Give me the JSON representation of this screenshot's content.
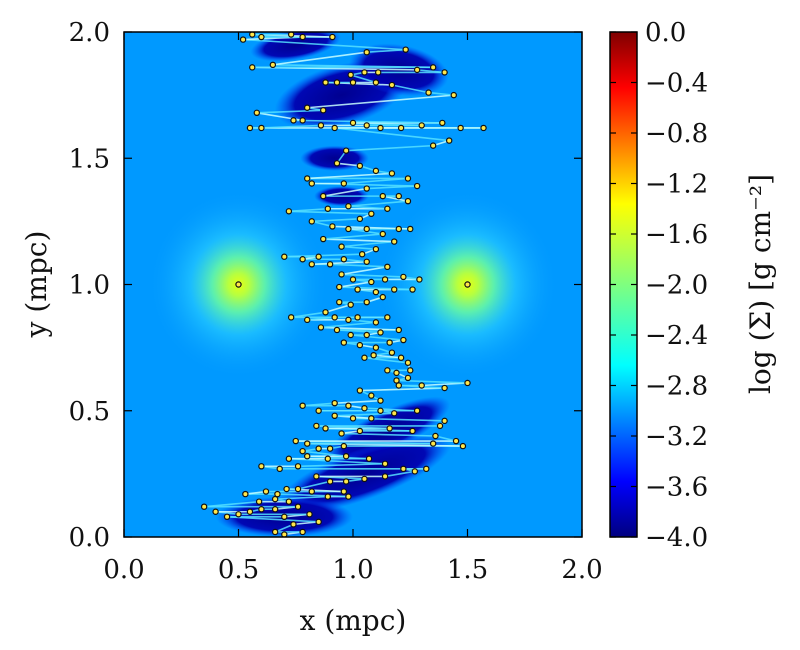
{
  "chart_data": {
    "type": "heatmap",
    "title": "",
    "xlabel": "x (mpc)",
    "ylabel": "y (mpc)",
    "xlim": [
      0.0,
      2.0
    ],
    "ylim": [
      0.0,
      2.0
    ],
    "x_ticks": [
      "0.0",
      "0.5",
      "1.0",
      "1.5",
      "2.0"
    ],
    "y_ticks": [
      "0.0",
      "0.5",
      "1.0",
      "1.5",
      "2.0"
    ],
    "colorbar": {
      "label": "log (Σ)  [g cm⁻²]",
      "range": [
        -4.0,
        0.0
      ],
      "colormap": "jet",
      "ticks": [
        "0.0",
        "−0.4",
        "−0.8",
        "−1.2",
        "−1.6",
        "−2.0",
        "−2.4",
        "−2.8",
        "−3.2",
        "−3.6",
        "−4.0"
      ]
    },
    "background_level": -2.9,
    "grid": false,
    "sources": [
      {
        "x": 0.5,
        "y": 1.0,
        "peak_log_sigma": -2.0
      },
      {
        "x": 1.5,
        "y": 1.0,
        "peak_log_sigma": -2.0
      }
    ],
    "low_density_regions": [
      {
        "x": 0.95,
        "y": 1.75,
        "rx": 0.3,
        "ry": 0.12,
        "rotation": -15
      },
      {
        "x": 1.2,
        "y": 1.85,
        "rx": 0.22,
        "ry": 0.1,
        "rotation": 10
      },
      {
        "x": 0.75,
        "y": 1.95,
        "rx": 0.2,
        "ry": 0.06,
        "rotation": -10
      },
      {
        "x": 1.15,
        "y": 0.42,
        "rx": 0.3,
        "ry": 0.08,
        "rotation": -25
      },
      {
        "x": 1.05,
        "y": 0.25,
        "rx": 0.4,
        "ry": 0.1,
        "rotation": -20
      },
      {
        "x": 0.7,
        "y": 0.08,
        "rx": 0.3,
        "ry": 0.08,
        "rotation": 0
      },
      {
        "x": 0.92,
        "y": 1.5,
        "rx": 0.15,
        "ry": 0.05,
        "rotation": 0
      },
      {
        "x": 0.95,
        "y": 1.35,
        "rx": 0.12,
        "ry": 0.04,
        "rotation": 0
      }
    ],
    "particles": [
      [
        0.5,
        1.0
      ],
      [
        1.5,
        1.0
      ],
      [
        0.56,
        1.99
      ],
      [
        0.73,
        1.99
      ],
      [
        0.78,
        1.98
      ],
      [
        0.52,
        1.97
      ],
      [
        0.6,
        1.98
      ],
      [
        0.91,
        1.98
      ],
      [
        1.06,
        1.92
      ],
      [
        1.23,
        1.93
      ],
      [
        0.65,
        1.87
      ],
      [
        0.56,
        1.86
      ],
      [
        0.99,
        1.83
      ],
      [
        1.05,
        1.84
      ],
      [
        1.11,
        1.84
      ],
      [
        1.28,
        1.85
      ],
      [
        1.35,
        1.86
      ],
      [
        1.4,
        1.84
      ],
      [
        0.88,
        1.8
      ],
      [
        0.93,
        1.8
      ],
      [
        1.0,
        1.8
      ],
      [
        1.1,
        1.8
      ],
      [
        1.17,
        1.79
      ],
      [
        1.33,
        1.76
      ],
      [
        1.44,
        1.75
      ],
      [
        0.8,
        1.7
      ],
      [
        0.87,
        1.69
      ],
      [
        0.58,
        1.68
      ],
      [
        0.74,
        1.65
      ],
      [
        0.78,
        1.65
      ],
      [
        0.86,
        1.63
      ],
      [
        0.92,
        1.62
      ],
      [
        1.0,
        1.64
      ],
      [
        1.06,
        1.63
      ],
      [
        1.12,
        1.62
      ],
      [
        1.21,
        1.62
      ],
      [
        1.3,
        1.63
      ],
      [
        1.39,
        1.64
      ],
      [
        1.47,
        1.62
      ],
      [
        1.57,
        1.62
      ],
      [
        0.55,
        1.62
      ],
      [
        0.6,
        1.62
      ],
      [
        1.35,
        1.55
      ],
      [
        1.42,
        1.57
      ],
      [
        0.97,
        1.53
      ],
      [
        0.93,
        1.48
      ],
      [
        1.03,
        1.47
      ],
      [
        1.1,
        1.45
      ],
      [
        1.17,
        1.44
      ],
      [
        1.24,
        1.42
      ],
      [
        1.28,
        1.39
      ],
      [
        0.8,
        1.42
      ],
      [
        0.82,
        1.4
      ],
      [
        0.96,
        1.4
      ],
      [
        1.06,
        1.38
      ],
      [
        1.13,
        1.35
      ],
      [
        1.2,
        1.35
      ],
      [
        1.24,
        1.33
      ],
      [
        0.87,
        1.35
      ],
      [
        0.89,
        1.3
      ],
      [
        0.98,
        1.31
      ],
      [
        1.03,
        1.26
      ],
      [
        1.08,
        1.28
      ],
      [
        1.15,
        1.3
      ],
      [
        0.72,
        1.29
      ],
      [
        0.82,
        1.25
      ],
      [
        0.91,
        1.23
      ],
      [
        0.98,
        1.22
      ],
      [
        1.06,
        1.22
      ],
      [
        1.13,
        1.2
      ],
      [
        1.2,
        1.22
      ],
      [
        1.25,
        1.22
      ],
      [
        0.87,
        1.18
      ],
      [
        0.95,
        1.15
      ],
      [
        1.04,
        1.12
      ],
      [
        1.1,
        1.14
      ],
      [
        1.18,
        1.17
      ],
      [
        0.85,
        1.11
      ],
      [
        0.9,
        1.08
      ],
      [
        0.96,
        1.1
      ],
      [
        1.06,
        1.09
      ],
      [
        1.15,
        1.07
      ],
      [
        0.7,
        1.11
      ],
      [
        0.78,
        1.1
      ],
      [
        0.82,
        1.08
      ],
      [
        0.95,
        1.04
      ],
      [
        1.0,
        1.02
      ],
      [
        1.08,
        1.01
      ],
      [
        1.14,
        1.02
      ],
      [
        1.22,
        1.03
      ],
      [
        1.29,
        1.02
      ],
      [
        0.94,
        0.99
      ],
      [
        1.02,
        0.98
      ],
      [
        1.1,
        0.97
      ],
      [
        1.18,
        0.98
      ],
      [
        1.26,
        0.98
      ],
      [
        0.94,
        0.93
      ],
      [
        0.99,
        0.92
      ],
      [
        1.06,
        0.93
      ],
      [
        1.13,
        0.95
      ],
      [
        0.88,
        0.89
      ],
      [
        0.92,
        0.87
      ],
      [
        0.98,
        0.86
      ],
      [
        1.02,
        0.87
      ],
      [
        1.1,
        0.85
      ],
      [
        1.15,
        0.87
      ],
      [
        0.73,
        0.87
      ],
      [
        0.8,
        0.86
      ],
      [
        0.86,
        0.83
      ],
      [
        0.93,
        0.82
      ],
      [
        0.99,
        0.8
      ],
      [
        1.06,
        0.8
      ],
      [
        1.12,
        0.81
      ],
      [
        1.2,
        0.82
      ],
      [
        0.96,
        0.77
      ],
      [
        1.03,
        0.76
      ],
      [
        1.1,
        0.75
      ],
      [
        1.16,
        0.77
      ],
      [
        1.22,
        0.78
      ],
      [
        1.05,
        0.71
      ],
      [
        1.09,
        0.72
      ],
      [
        1.17,
        0.73
      ],
      [
        1.21,
        0.71
      ],
      [
        1.24,
        0.69
      ],
      [
        1.15,
        0.66
      ],
      [
        1.19,
        0.65
      ],
      [
        1.25,
        0.66
      ],
      [
        1.19,
        0.62
      ],
      [
        1.24,
        0.63
      ],
      [
        1.2,
        0.6
      ],
      [
        1.3,
        0.6
      ],
      [
        1.4,
        0.59
      ],
      [
        1.5,
        0.61
      ],
      [
        1.03,
        0.58
      ],
      [
        1.08,
        0.56
      ],
      [
        1.12,
        0.54
      ],
      [
        0.92,
        0.53
      ],
      [
        0.98,
        0.52
      ],
      [
        1.05,
        0.51
      ],
      [
        1.12,
        0.5
      ],
      [
        0.78,
        0.52
      ],
      [
        0.85,
        0.5
      ],
      [
        0.92,
        0.48
      ],
      [
        1.0,
        0.47
      ],
      [
        1.08,
        0.47
      ],
      [
        1.18,
        0.49
      ],
      [
        1.28,
        0.5
      ],
      [
        0.84,
        0.44
      ],
      [
        0.88,
        0.43
      ],
      [
        0.95,
        0.41
      ],
      [
        1.03,
        0.42
      ],
      [
        1.16,
        0.43
      ],
      [
        1.26,
        0.42
      ],
      [
        0.75,
        0.38
      ],
      [
        0.8,
        0.37
      ],
      [
        0.85,
        0.35
      ],
      [
        0.9,
        0.35
      ],
      [
        0.96,
        0.36
      ],
      [
        1.35,
        0.37
      ],
      [
        1.45,
        0.38
      ],
      [
        1.48,
        0.36
      ],
      [
        0.78,
        0.34
      ],
      [
        0.72,
        0.31
      ],
      [
        0.8,
        0.32
      ],
      [
        0.89,
        0.31
      ],
      [
        0.97,
        0.32
      ],
      [
        1.07,
        0.31
      ],
      [
        1.14,
        0.29
      ],
      [
        1.22,
        0.27
      ],
      [
        1.27,
        0.26
      ],
      [
        1.32,
        0.27
      ],
      [
        0.6,
        0.28
      ],
      [
        0.68,
        0.27
      ],
      [
        0.76,
        0.28
      ],
      [
        0.84,
        0.24
      ],
      [
        0.9,
        0.22
      ],
      [
        0.97,
        0.22
      ],
      [
        1.05,
        0.23
      ],
      [
        1.14,
        0.24
      ],
      [
        0.62,
        0.18
      ],
      [
        0.67,
        0.17
      ],
      [
        0.71,
        0.19
      ],
      [
        0.76,
        0.19
      ],
      [
        0.82,
        0.18
      ],
      [
        0.89,
        0.16
      ],
      [
        0.96,
        0.18
      ],
      [
        0.98,
        0.16
      ],
      [
        0.53,
        0.17
      ],
      [
        0.59,
        0.14
      ],
      [
        0.66,
        0.15
      ],
      [
        0.72,
        0.14
      ],
      [
        0.76,
        0.12
      ],
      [
        0.81,
        0.09
      ],
      [
        0.85,
        0.06
      ],
      [
        0.35,
        0.12
      ],
      [
        0.4,
        0.1
      ],
      [
        0.45,
        0.08
      ],
      [
        0.5,
        0.09
      ],
      [
        0.55,
        0.1
      ],
      [
        0.6,
        0.11
      ],
      [
        0.66,
        0.11
      ],
      [
        0.7,
        0.08
      ],
      [
        0.74,
        0.05
      ],
      [
        0.78,
        0.02
      ],
      [
        0.66,
        0.02
      ],
      [
        0.7,
        0.01
      ],
      [
        1.38,
        0.44
      ],
      [
        1.36,
        0.4
      ],
      [
        1.4,
        0.46
      ]
    ]
  }
}
